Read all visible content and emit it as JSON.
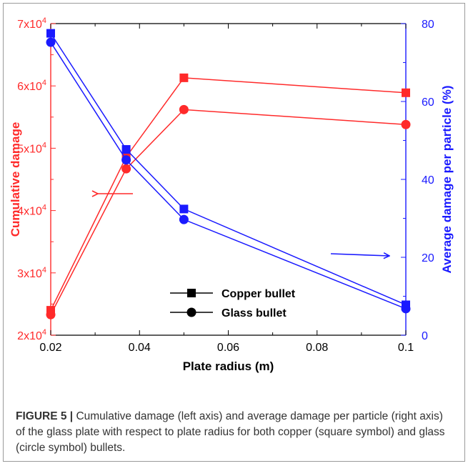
{
  "chart_data": {
    "type": "line",
    "x": [
      0.02,
      0.037,
      0.05,
      0.1
    ],
    "xlabel": "Plate radius (m)",
    "xticks": [
      "0.02",
      "0.04",
      "0.06",
      "0.08",
      "0.1"
    ],
    "xtick_values": [
      0.02,
      0.04,
      0.06,
      0.08,
      0.1
    ],
    "xlim": [
      0.02,
      0.1
    ],
    "y_left": {
      "label": "Cumulative damage",
      "color": "#ff2a2a",
      "ylim": [
        20000,
        70000
      ],
      "tick_values": [
        20000,
        30000,
        40000,
        50000,
        60000,
        70000
      ],
      "tick_mantissas": [
        "2x10",
        "3x10",
        "4x10",
        "5x10",
        "6x10",
        "7x10"
      ],
      "tick_exponent": "4"
    },
    "y_right": {
      "label": "Average damage per particle (%)",
      "color": "#1a1aff",
      "ylim": [
        0,
        80
      ],
      "tick_values": [
        0,
        20,
        40,
        60,
        80
      ],
      "tick_labels": [
        "0",
        "20",
        "40",
        "60",
        "80"
      ]
    },
    "series": [
      {
        "name": "Copper bullet",
        "axis": "left",
        "marker": "square",
        "values": [
          24000,
          48600,
          61300,
          58900
        ]
      },
      {
        "name": "Glass bullet",
        "axis": "left",
        "marker": "circle",
        "values": [
          23300,
          46700,
          56200,
          53800
        ]
      },
      {
        "name": "Copper bullet",
        "axis": "right",
        "marker": "square",
        "values": [
          77.5,
          47.7,
          32.4,
          7.8
        ]
      },
      {
        "name": "Glass bullet",
        "axis": "right",
        "marker": "circle",
        "values": [
          75.2,
          45.0,
          29.7,
          6.8
        ]
      }
    ],
    "legend": {
      "placement": "bottom-center",
      "entries": [
        {
          "label": "Copper bullet",
          "marker": "square"
        },
        {
          "label": "Glass bullet",
          "marker": "circle"
        }
      ]
    },
    "annotations": [
      "left-pointing red arrow toward left axis",
      "right-pointing blue arrow toward right axis"
    ]
  },
  "caption": {
    "label": "FIGURE 5 |",
    "text": " Cumulative damage (left axis) and average damage per particle (right axis) of the glass plate with respect to plate radius for both copper (square symbol) and glass (circle symbol) bullets."
  }
}
